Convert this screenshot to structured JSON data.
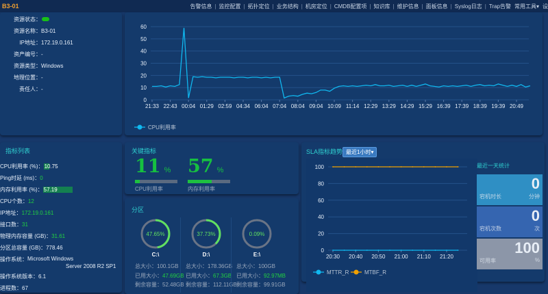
{
  "topbar": {
    "title": "B3-01",
    "nav": [
      "告警信息",
      "监控配置",
      "拓扑定位",
      "业务结构",
      "机房定位",
      "CMDB配置项",
      "知识库",
      "维护信息",
      "面板信息",
      "Syslog日志",
      "Trap告警"
    ],
    "tools": "常用工具▾",
    "settings": "设"
  },
  "info": {
    "rows": [
      {
        "k": "资源状态：",
        "v": "",
        "status_color": "#18c018"
      },
      {
        "k": "资源名称：",
        "v": "B3-01"
      },
      {
        "k": "IP地址：",
        "v": "172.19.0.161"
      },
      {
        "k": "资产编号：",
        "v": "-"
      },
      {
        "k": "资源类型：",
        "v": "Windows"
      },
      {
        "k": "地理位置：",
        "v": "-"
      },
      {
        "k": "责任人：",
        "v": "-"
      }
    ]
  },
  "indicators": {
    "title": "指标列表",
    "rows": [
      {
        "k": "CPU利用率 (%)：",
        "v": "10.75",
        "bar": 10.75
      },
      {
        "k": "Ping时延 (ms)：",
        "v": "0",
        "green": true
      },
      {
        "k": "内存利用率 (%)：",
        "v": "57.19",
        "bar": 57.19
      },
      {
        "k": "CPU个数：",
        "v": "12",
        "green": true
      },
      {
        "k": "IP地址：",
        "v": "172.19.0.161",
        "green": true
      },
      {
        "k": "接口数：",
        "v": "31",
        "green": true
      },
      {
        "k": "物理内存容量 (GB)：",
        "v": "31.61",
        "green": true
      },
      {
        "k": "分区总容量 (GB)：",
        "v": "778.46"
      },
      {
        "k": "操作系统：",
        "v": "Microsoft Windows",
        "v2": "Server 2008 R2 SP1"
      },
      {
        "k": "操作系统版本：",
        "v": "6.1"
      },
      {
        "k": "进程数：",
        "v": "67"
      }
    ]
  },
  "key_metrics": {
    "title": "关键指标",
    "items": [
      {
        "value": "11",
        "unit": "%",
        "label": "CPU利用率",
        "percent": 11
      },
      {
        "value": "57",
        "unit": "%",
        "label": "内存利用率",
        "percent": 57
      }
    ]
  },
  "partitions": {
    "title": "分区",
    "items": [
      {
        "pct": "47.65%",
        "percent": 47.65,
        "name": "C:\\",
        "total_k": "总大小：",
        "total": "100.1GB",
        "used_k": "已用大小：",
        "used": "47.69GB",
        "free_k": "剩余容量：",
        "free": "52.48GB"
      },
      {
        "pct": "37.73%",
        "percent": 37.73,
        "name": "D:\\",
        "total_k": "总大小：",
        "total": "178.36GB",
        "used_k": "已用大小：",
        "used": "67.3GB",
        "free_k": "剩余容量：",
        "free": "112.11GB"
      },
      {
        "pct": "0.09%",
        "percent": 0.09,
        "name": "E:\\",
        "total_k": "总大小：",
        "total": "100GB",
        "used_k": "已用大小：",
        "used": "92.97MB",
        "free_k": "剩余容量：",
        "free": "99.91GB"
      }
    ]
  },
  "sla": {
    "title": "SLA指标趋势",
    "range_button": "最近1小时▾",
    "stats_title": "最近一天统计",
    "stats": [
      {
        "label": "宕机时长",
        "value": "0",
        "unit": "分钟",
        "color": "#2f8fc4"
      },
      {
        "label": "宕机次数",
        "value": "0",
        "unit": "次",
        "color": "#3565b0"
      },
      {
        "label": "可用率",
        "value": "100",
        "unit": "%",
        "color": "#8c96a8"
      }
    ]
  },
  "chart_data": [
    {
      "type": "line",
      "ylim": [
        0,
        60
      ],
      "yticks": [
        0,
        10,
        20,
        30,
        40,
        50,
        60
      ],
      "xticks": [
        "21:33",
        "22:43",
        "00:04",
        "01:29",
        "02:59",
        "04:34",
        "06:04",
        "07:04",
        "08:04",
        "09:04",
        "10:09",
        "11:14",
        "12:29",
        "13:29",
        "14:29",
        "15:29",
        "16:39",
        "17:39",
        "18:39",
        "19:39",
        "20:49"
      ],
      "series": [
        {
          "name": "CPU利用率",
          "color": "#10b8f0",
          "values": [
            11,
            11,
            11.5,
            10.5,
            11.5,
            11,
            12.5,
            59,
            1.5,
            19,
            18.5,
            19,
            18.5,
            18.5,
            18,
            18.5,
            18.5,
            18.5,
            18,
            18.5,
            18.5,
            18,
            18.5,
            18.5,
            18,
            18.5,
            18,
            18.5,
            18.5,
            1.5,
            3,
            3.5,
            3,
            4.5,
            5.5,
            5,
            6,
            8,
            8,
            7,
            9.5,
            11,
            11.5,
            11,
            11.5,
            11,
            11.5,
            12,
            11.5,
            12.5,
            11.5,
            11.5,
            12,
            11,
            11.5,
            12,
            11,
            12,
            11,
            12,
            13,
            11.5,
            11,
            10.5,
            11.5,
            11,
            11.5,
            11,
            11.5,
            12,
            11,
            12,
            12.5,
            11.5,
            12,
            11.5,
            13,
            12,
            11,
            12,
            11,
            12.5,
            10.5,
            11.5
          ]
        }
      ],
      "grid": true,
      "legend": "bottom-left"
    },
    {
      "type": "line",
      "ylim": [
        0,
        100
      ],
      "yticks": [
        0,
        20,
        40,
        60,
        80,
        100
      ],
      "categories": [
        "20:30",
        "20:35",
        "20:40",
        "20:45",
        "20:50",
        "20:55",
        "21:00",
        "21:05",
        "21:10",
        "21:15",
        "21:20",
        "21:25"
      ],
      "xticks": [
        "20:30",
        "20:40",
        "20:50",
        "21:00",
        "21:10",
        "21:20"
      ],
      "series": [
        {
          "name": "MTTR_R",
          "color": "#10b8f0",
          "values": [
            0,
            0,
            0,
            0,
            0,
            0,
            0,
            0,
            0,
            0,
            0,
            0
          ]
        },
        {
          "name": "MTBF_R",
          "color": "#f0a000",
          "values": [
            100,
            100,
            100,
            100,
            100,
            100,
            100,
            100,
            100,
            100,
            100,
            100
          ]
        }
      ],
      "grid": true,
      "legend": "bottom-left"
    }
  ]
}
